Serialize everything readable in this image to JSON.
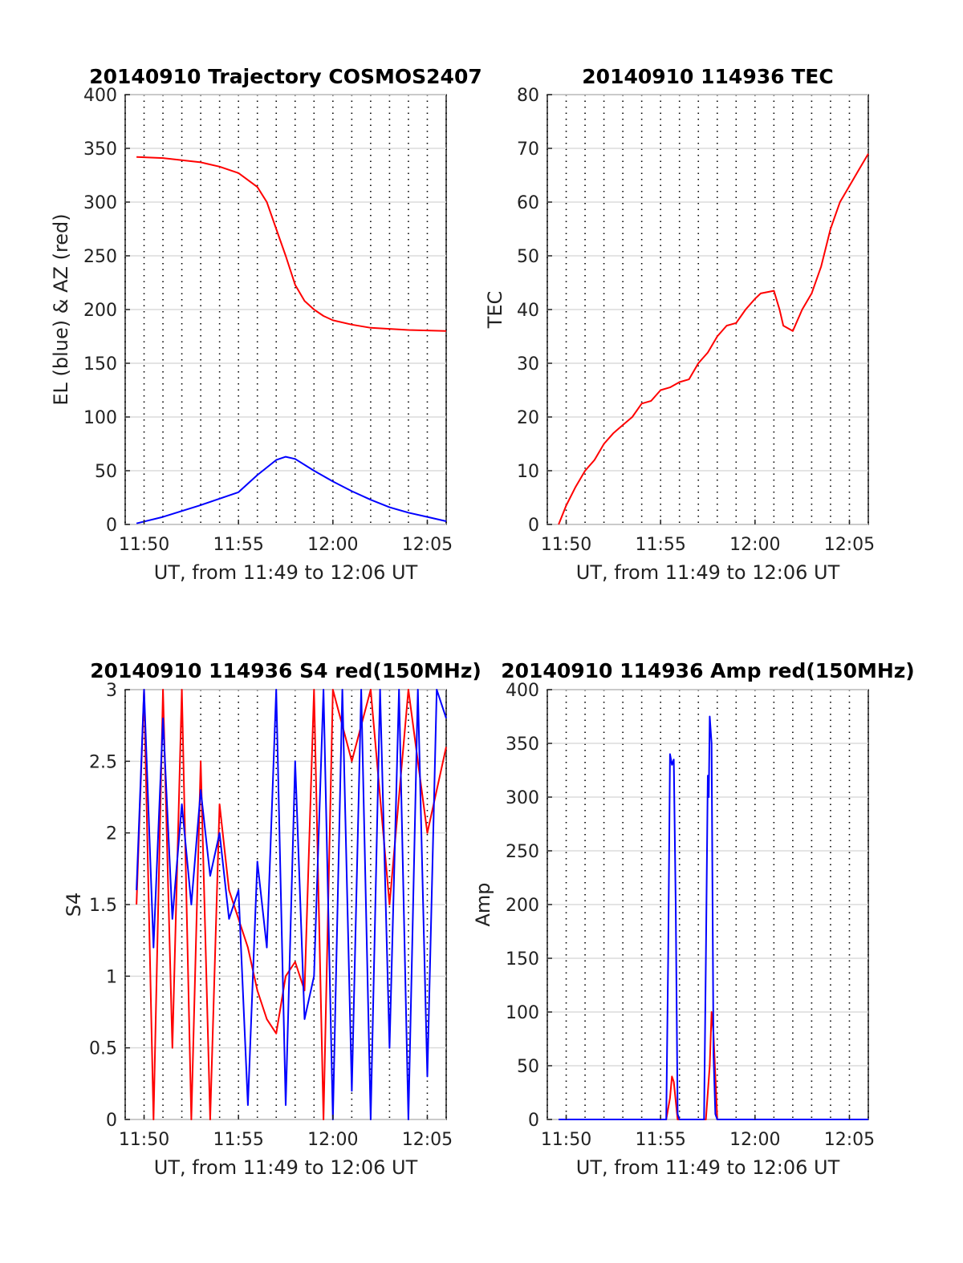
{
  "chart_data": [
    {
      "type": "line",
      "title": "20140910 Trajectory COSMOS2407",
      "xlabel": "UT, from 11:49 to 12:06 UT",
      "ylabel": "EL (blue) & AZ (red)",
      "xlim": [
        0,
        17
      ],
      "ylim": [
        0,
        400
      ],
      "xticks": [
        1,
        6,
        11,
        16
      ],
      "xtick_labels": [
        "11:50",
        "11:55",
        "12:00",
        "12:05"
      ],
      "yticks": [
        0,
        50,
        100,
        150,
        200,
        250,
        300,
        350,
        400
      ],
      "grid": true,
      "series": [
        {
          "color": "#ff0000",
          "x": [
            0.6,
            2,
            3,
            4,
            5,
            6,
            7,
            7.5,
            8,
            8.5,
            9,
            9.5,
            10,
            10.5,
            11,
            12,
            13,
            14,
            15,
            16,
            17
          ],
          "y": [
            342,
            341,
            339,
            337,
            333,
            327,
            314,
            300,
            275,
            250,
            223,
            208,
            200,
            194,
            190,
            186,
            183,
            182,
            181,
            180.5,
            180
          ]
        },
        {
          "color": "#0000ff",
          "x": [
            0.6,
            2,
            4,
            6,
            7,
            8,
            8.5,
            9,
            10,
            11,
            12,
            13,
            14,
            15,
            16,
            17
          ],
          "y": [
            1,
            7,
            18,
            30,
            46,
            60,
            63,
            61,
            50,
            40,
            31,
            23,
            16,
            11,
            7,
            3
          ]
        }
      ]
    },
    {
      "type": "line",
      "title": "20140910 114936 TEC",
      "xlabel": "UT, from 11:49 to 12:06 UT",
      "ylabel": "TEC",
      "xlim": [
        0,
        17
      ],
      "ylim": [
        0,
        80
      ],
      "xticks": [
        1,
        6,
        11,
        16
      ],
      "xtick_labels": [
        "11:50",
        "11:55",
        "12:00",
        "12:05"
      ],
      "yticks": [
        0,
        10,
        20,
        30,
        40,
        50,
        60,
        70,
        80
      ],
      "grid": true,
      "series": [
        {
          "color": "#ff0000",
          "x": [
            0.6,
            1,
            1.5,
            2,
            2.5,
            3,
            3.5,
            4,
            4.5,
            5,
            5.5,
            6,
            6.5,
            7,
            7.5,
            8,
            8.5,
            9,
            9.5,
            10,
            10.5,
            11,
            11.3,
            12,
            12.3,
            12.5,
            13,
            13.5,
            14,
            14.5,
            15,
            15.5,
            16,
            16.5,
            17
          ],
          "y": [
            0,
            3.5,
            7,
            10,
            12,
            15,
            17,
            18.5,
            20,
            22.5,
            23,
            25,
            25.5,
            26.5,
            27,
            30,
            32,
            35,
            37,
            37.5,
            40,
            42,
            43,
            43.5,
            40,
            37,
            36,
            40,
            43,
            48,
            55,
            60,
            63,
            66,
            69
          ]
        }
      ]
    },
    {
      "type": "line",
      "title": "20140910 114936 S4 red(150MHz)",
      "xlabel": "UT, from 11:49 to 12:06 UT",
      "ylabel": "S4",
      "xlim": [
        0,
        17
      ],
      "ylim": [
        0,
        3
      ],
      "xticks": [
        1,
        6,
        11,
        16
      ],
      "xtick_labels": [
        "11:50",
        "11:55",
        "12:00",
        "12:05"
      ],
      "yticks": [
        0,
        0.5,
        1,
        1.5,
        2,
        2.5,
        3
      ],
      "ytick_labels": [
        "0",
        "0.5",
        "1",
        "1.5",
        "2",
        "2.5",
        "3"
      ],
      "grid": true,
      "series": [
        {
          "color": "#ff0000",
          "x": [
            0.6,
            1,
            1.5,
            2,
            2.5,
            3,
            3.5,
            4,
            4.5,
            5,
            5.5,
            6,
            6.5,
            7,
            7.5,
            8,
            8.5,
            9,
            9.5,
            10,
            10.5,
            11,
            12,
            13,
            14,
            15,
            16,
            17
          ],
          "y": [
            1.5,
            3,
            0,
            3,
            0.5,
            3,
            0,
            2.5,
            0,
            2.2,
            1.6,
            1.4,
            1.2,
            0.9,
            0.7,
            0.6,
            1.0,
            1.1,
            0.9,
            3,
            0,
            3,
            2.5,
            3,
            1.5,
            3,
            2.0,
            2.6
          ]
        },
        {
          "color": "#0000ff",
          "x": [
            0.6,
            1,
            1.5,
            2,
            2.5,
            3,
            3.5,
            4,
            4.5,
            5,
            5.5,
            6,
            6.5,
            7,
            7.5,
            8,
            8.5,
            9,
            9.5,
            10,
            10.5,
            11,
            11.5,
            12,
            12.5,
            13,
            13.5,
            14,
            14.5,
            15,
            15.5,
            16,
            16.5,
            17
          ],
          "y": [
            1.6,
            3,
            1.2,
            2.8,
            1.4,
            2.2,
            1.5,
            2.3,
            1.7,
            2.0,
            1.4,
            1.6,
            0.1,
            1.8,
            1.2,
            3,
            0.1,
            2.5,
            0.7,
            1.0,
            3,
            0,
            3,
            0.2,
            3,
            0,
            3,
            0.5,
            3,
            0,
            3,
            0.3,
            3,
            2.8
          ]
        }
      ]
    },
    {
      "type": "line",
      "title": "20140910 114936 Amp red(150MHz)",
      "xlabel": "UT, from 11:49 to 12:06 UT",
      "ylabel": "Amp",
      "xlim": [
        0,
        17
      ],
      "ylim": [
        0,
        400
      ],
      "xticks": [
        1,
        6,
        11,
        16
      ],
      "xtick_labels": [
        "11:50",
        "11:55",
        "12:00",
        "12:05"
      ],
      "yticks": [
        0,
        50,
        100,
        150,
        200,
        250,
        300,
        350,
        400
      ],
      "grid": true,
      "series": [
        {
          "color": "#ff0000",
          "x": [
            0.6,
            6.3,
            6.5,
            6.6,
            6.7,
            6.9,
            8.4,
            8.6,
            8.7,
            8.8,
            9.0,
            17
          ],
          "y": [
            0,
            0,
            20,
            40,
            35,
            0,
            0,
            50,
            100,
            80,
            0,
            0
          ]
        },
        {
          "color": "#0000ff",
          "x": [
            0.6,
            6.3,
            6.4,
            6.5,
            6.6,
            6.7,
            6.8,
            6.9,
            7.0,
            8.3,
            8.4,
            8.5,
            8.55,
            8.6,
            8.7,
            8.8,
            8.9,
            9.0,
            17
          ],
          "y": [
            0,
            0,
            150,
            340,
            330,
            335,
            200,
            5,
            0,
            0,
            150,
            320,
            300,
            375,
            350,
            60,
            5,
            0,
            0
          ]
        }
      ]
    }
  ]
}
